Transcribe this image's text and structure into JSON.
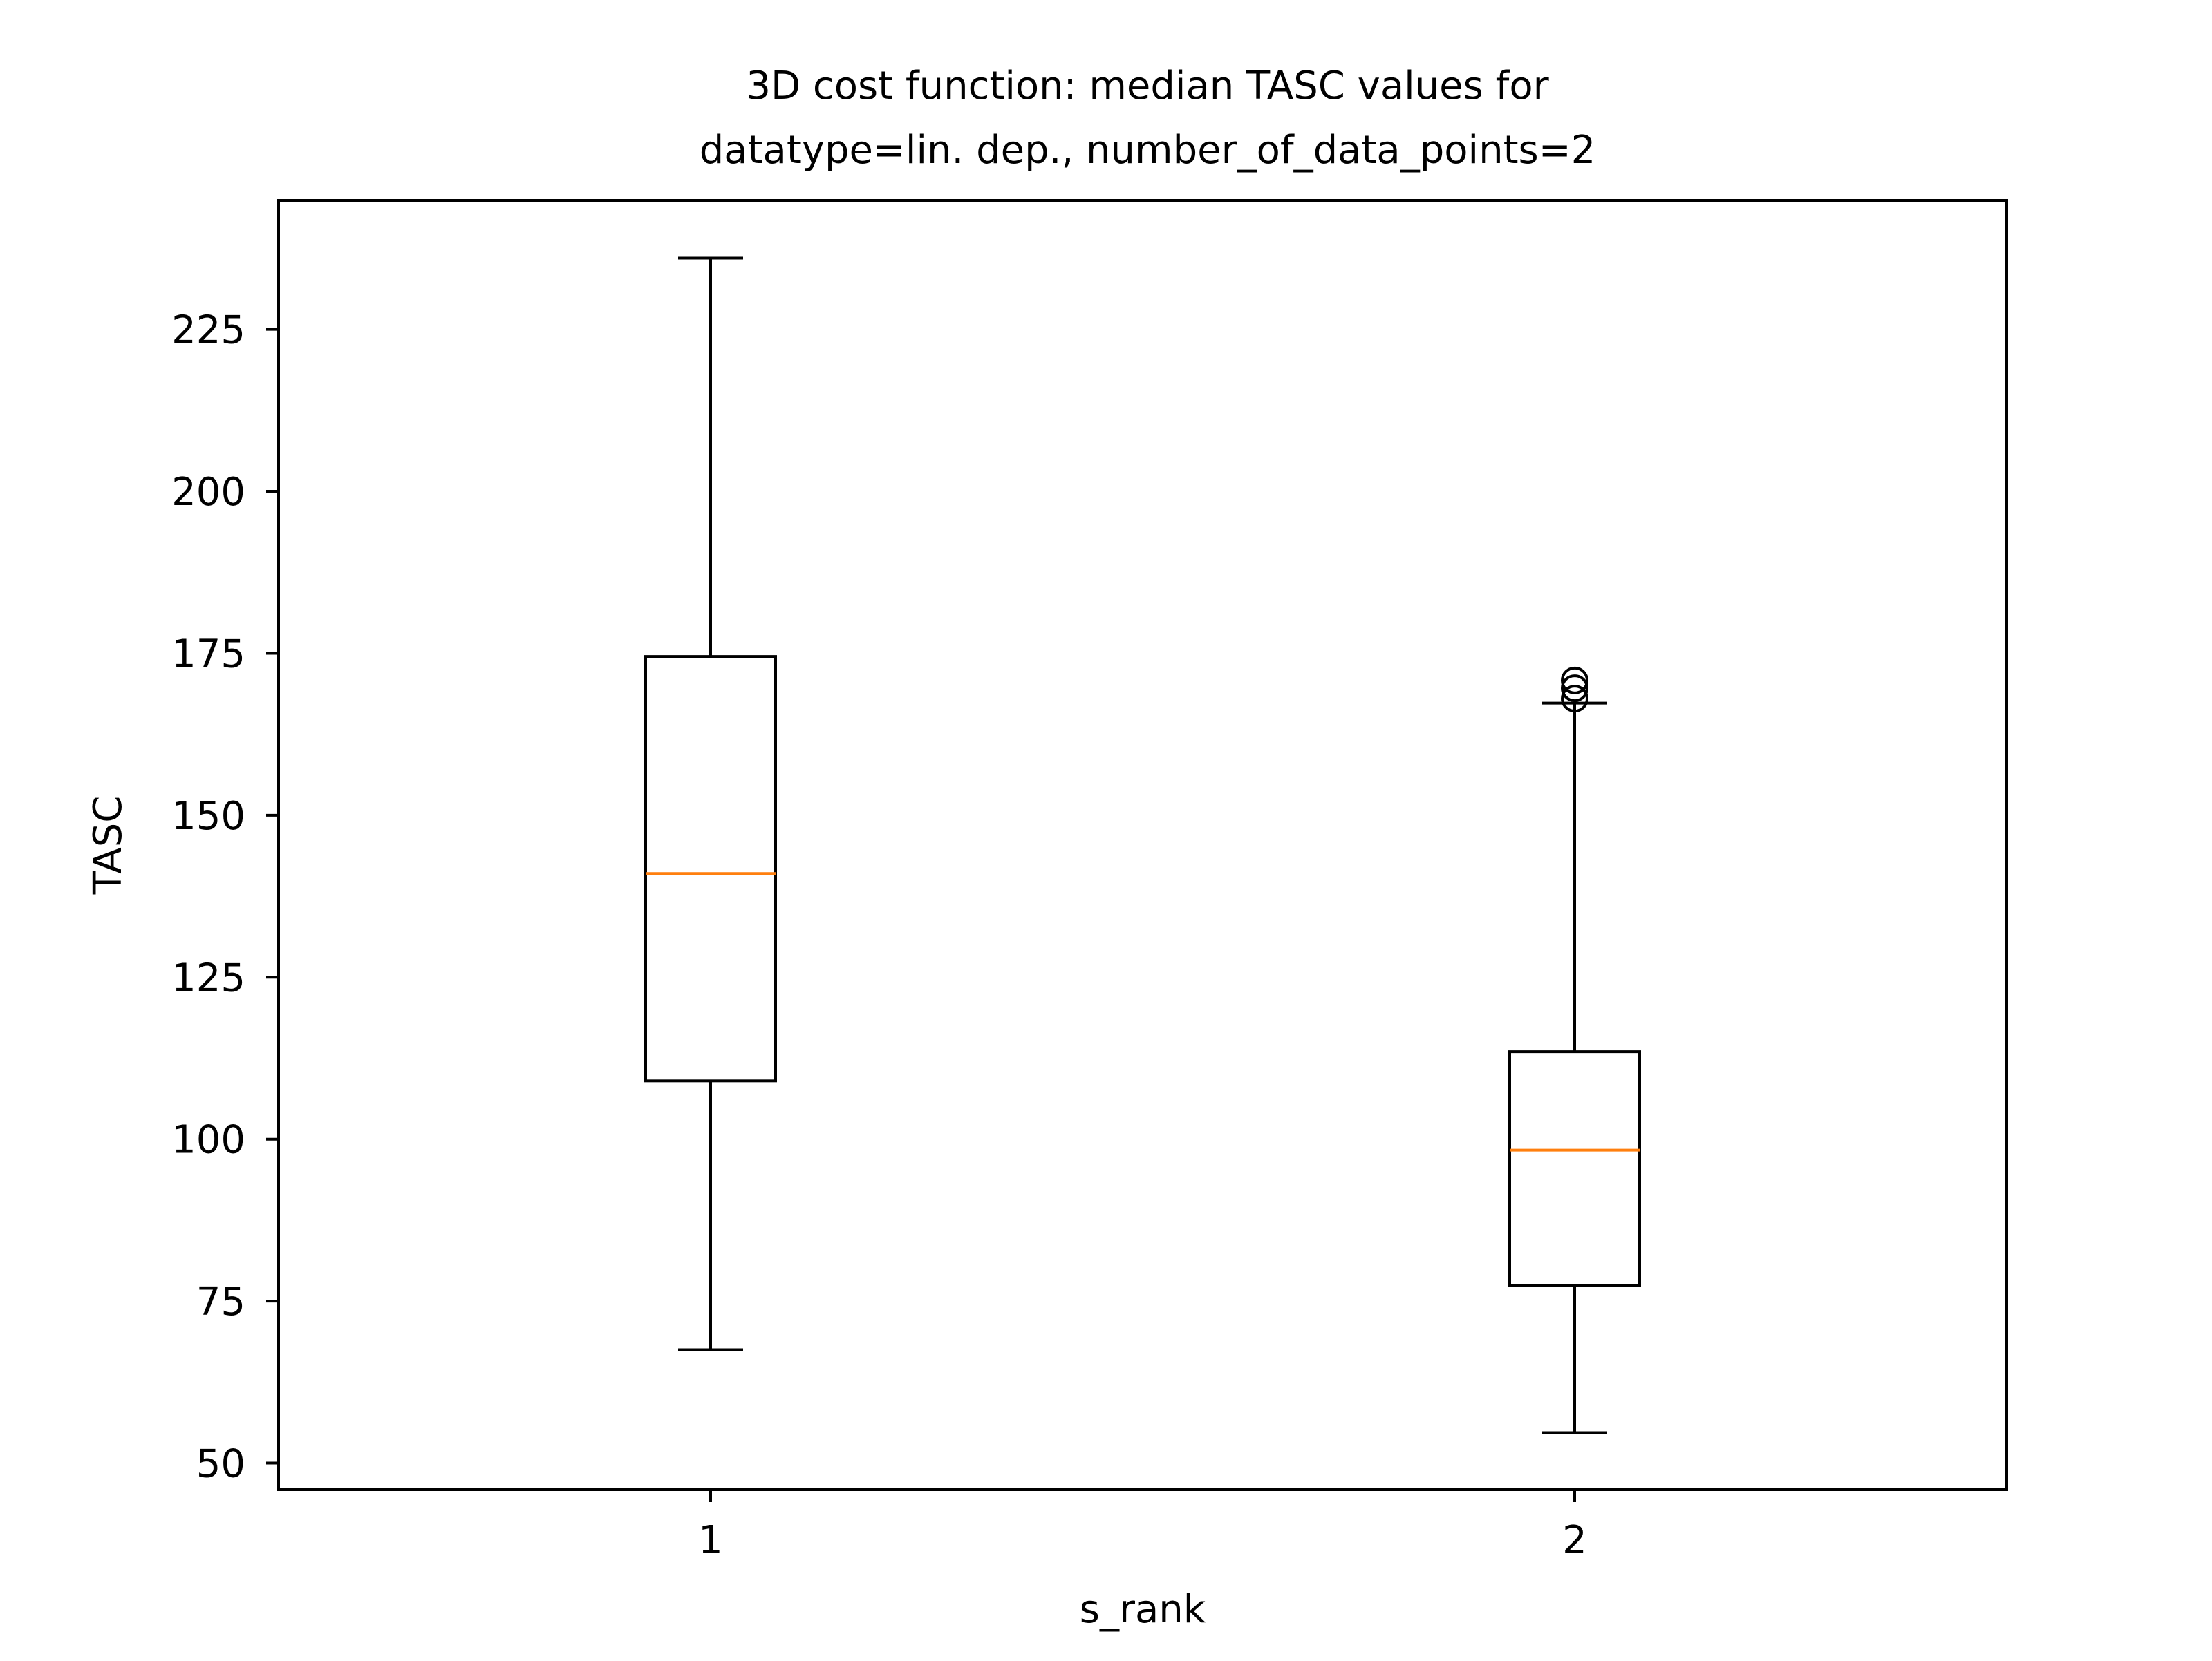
{
  "chart_data": {
    "type": "box",
    "title_line1": "3D cost function: median TASC values for",
    "title_line2": "datatype=lin. dep., number_of_data_points=2",
    "xlabel": "s_rank",
    "ylabel": "TASC",
    "categories": [
      "1",
      "2"
    ],
    "ylim": [
      45.9,
      244.9
    ],
    "yticks": [
      50,
      75,
      100,
      125,
      150,
      175,
      200,
      225
    ],
    "grid": false,
    "colors": {
      "box": "#000000",
      "median": "#ff7f0e"
    },
    "boxes": [
      {
        "category": "1",
        "whisker_low": 67.5,
        "q1": 109,
        "median": 141,
        "q3": 174.5,
        "whisker_high": 236,
        "outliers": []
      },
      {
        "category": "2",
        "whisker_low": 54.7,
        "q1": 77.4,
        "median": 98.3,
        "q3": 113.5,
        "whisker_high": 167.3,
        "outliers": [
          168,
          169.6,
          170.8
        ]
      }
    ]
  }
}
